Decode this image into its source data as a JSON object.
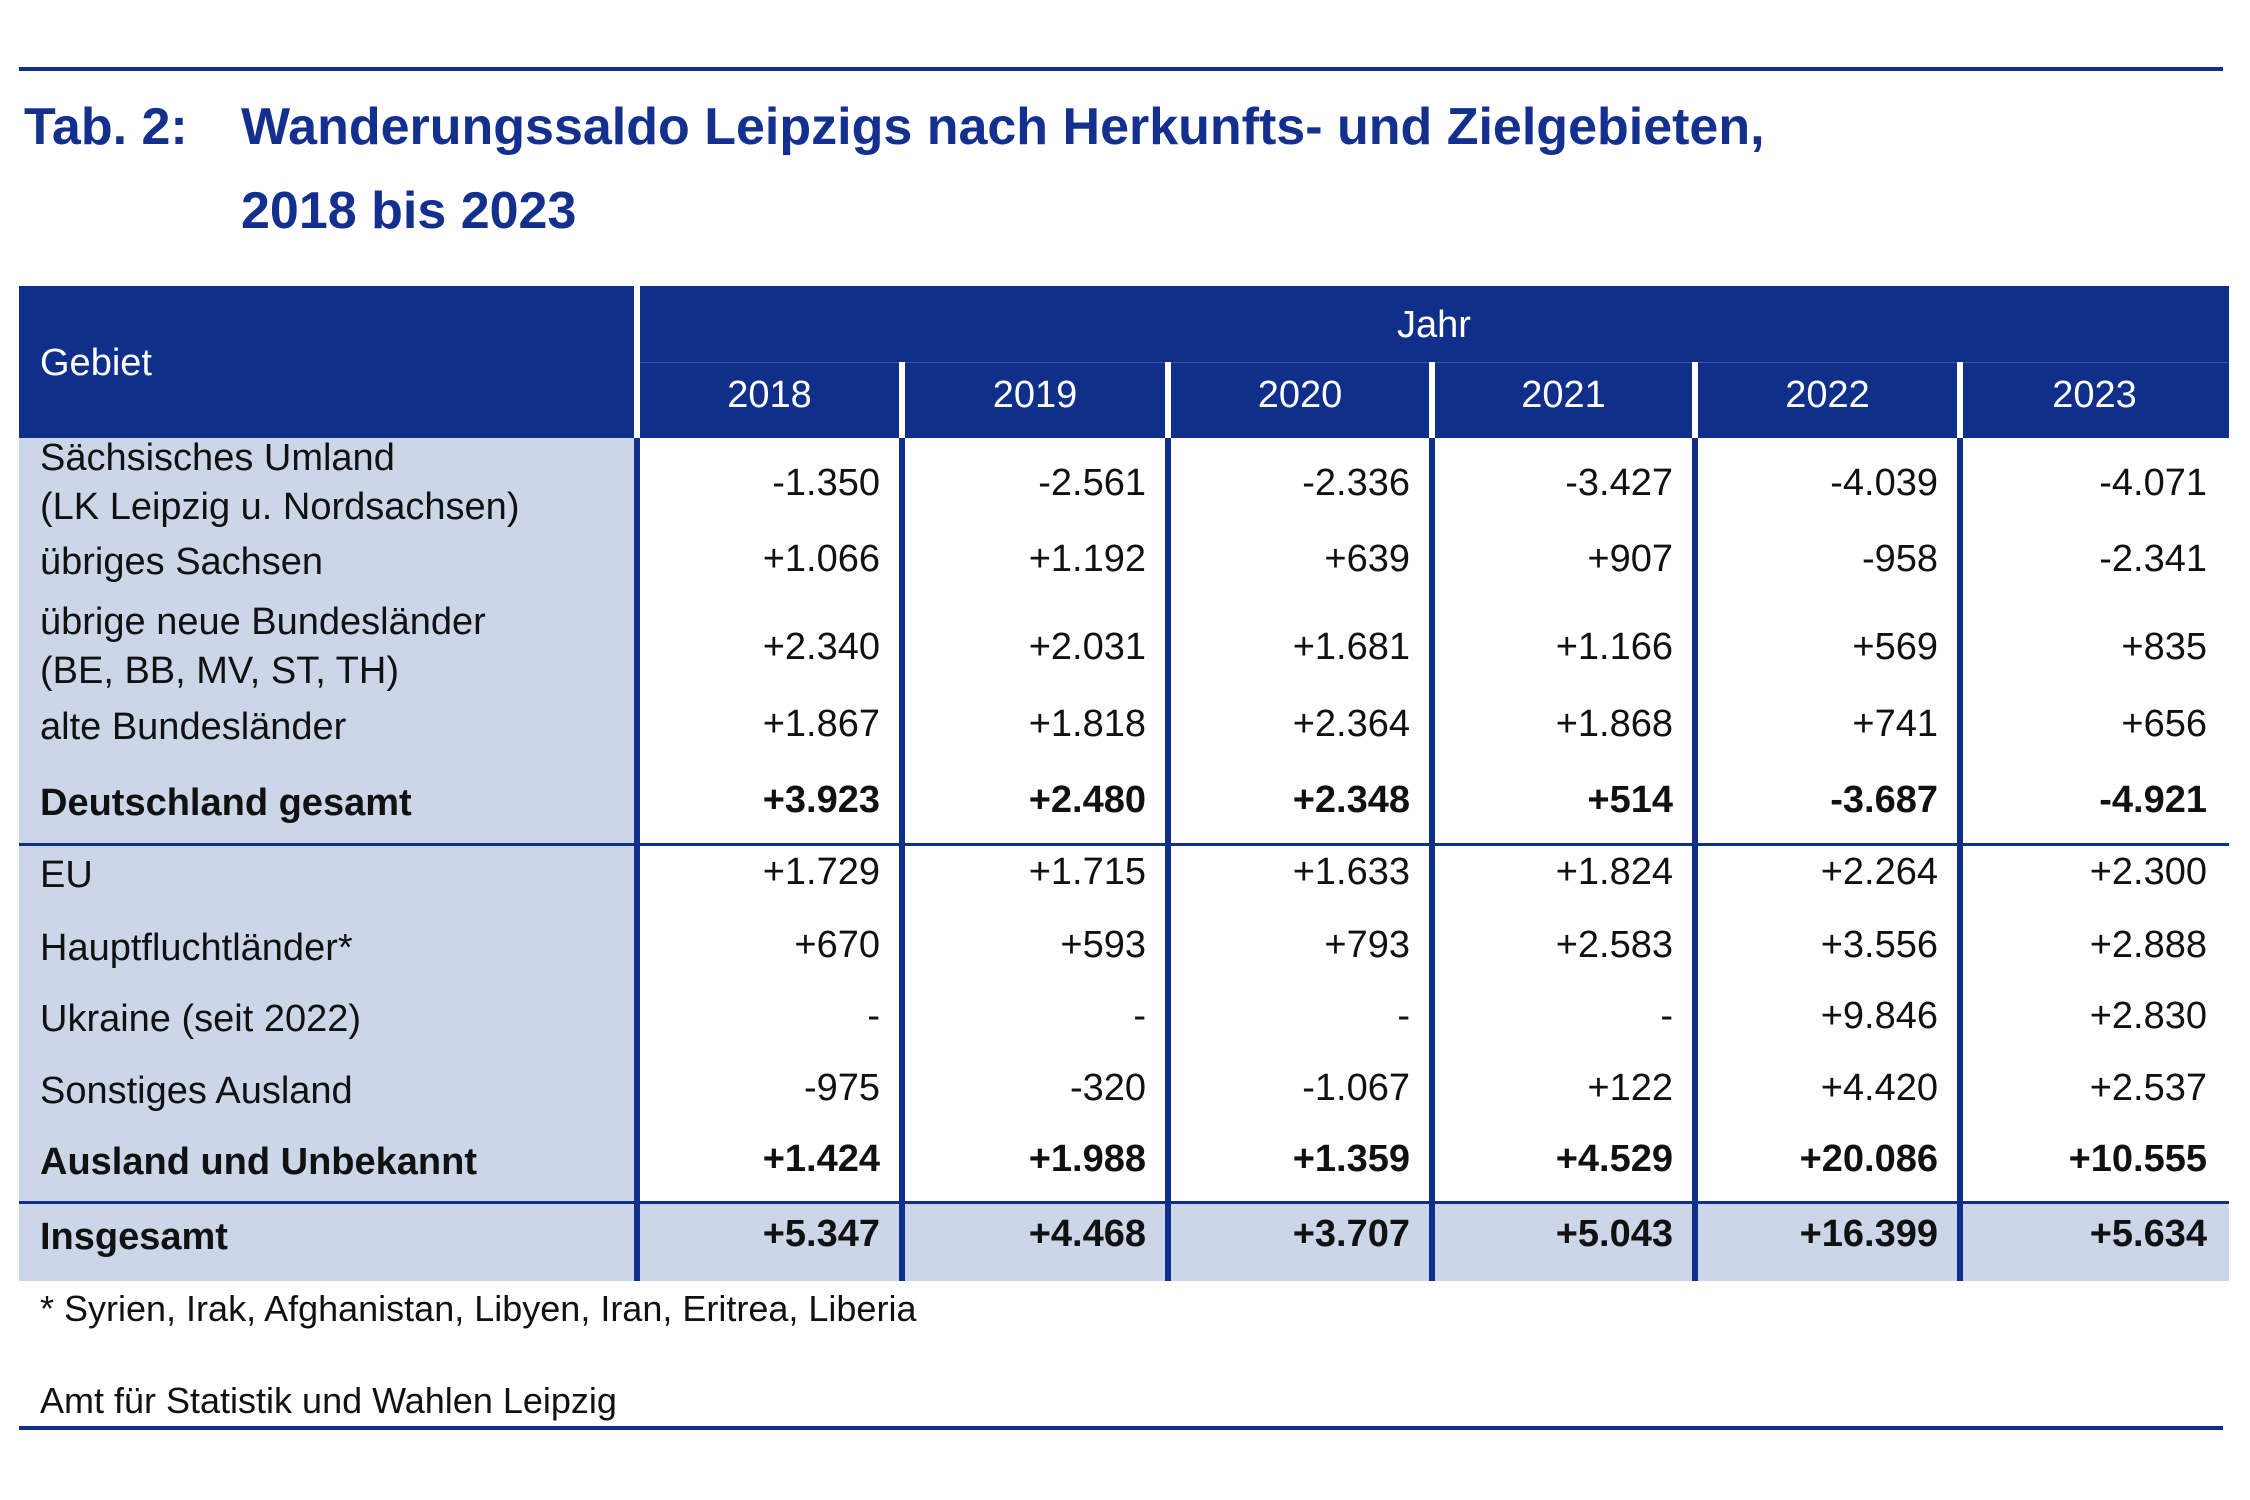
{
  "title": {
    "tab_no": "Tab. 2:",
    "line1": "Wanderungssaldo Leipzigs nach Herkunfts- und Zielgebieten,",
    "line2": "2018 bis 2023"
  },
  "table": {
    "header_gebiet": "Gebiet",
    "header_jahr": "Jahr",
    "years": [
      "2018",
      "2019",
      "2020",
      "2021",
      "2022",
      "2023"
    ],
    "rows": [
      {
        "label": "Sächsisches Umland\n(LK Leipzig u. Nordsachsen)",
        "values": [
          "-1.350",
          "-2.561",
          "-2.336",
          "-3.427",
          "-4.039",
          "-4.071"
        ]
      },
      {
        "label": "übriges Sachsen",
        "values": [
          "+1.066",
          "+1.192",
          "+639",
          "+907",
          "-958",
          "-2.341"
        ]
      },
      {
        "label": "übrige neue Bundesländer\n(BE, BB, MV, ST, TH)",
        "values": [
          "+2.340",
          "+2.031",
          "+1.681",
          "+1.166",
          "+569",
          "+835"
        ]
      },
      {
        "label": "alte Bundesländer",
        "values": [
          "+1.867",
          "+1.818",
          "+2.364",
          "+1.868",
          "+741",
          "+656"
        ]
      },
      {
        "label": "Deutschland gesamt",
        "values": [
          "+3.923",
          "+2.480",
          "+2.348",
          "+514",
          "-3.687",
          "-4.921"
        ]
      },
      {
        "label": "EU",
        "values": [
          "+1.729",
          "+1.715",
          "+1.633",
          "+1.824",
          "+2.264",
          "+2.300"
        ]
      },
      {
        "label": "Hauptfluchtländer*",
        "values": [
          "+670",
          "+593",
          "+793",
          "+2.583",
          "+3.556",
          "+2.888"
        ]
      },
      {
        "label": "Ukraine (seit 2022)",
        "values": [
          "-",
          "-",
          "-",
          "-",
          "+9.846",
          "+2.830"
        ]
      },
      {
        "label": "Sonstiges Ausland",
        "values": [
          "-975",
          "-320",
          "-1.067",
          "+122",
          "+4.420",
          "+2.537"
        ]
      },
      {
        "label": "Ausland und Unbekannt",
        "values": [
          "+1.424",
          "+1.988",
          "+1.359",
          "+4.529",
          "+20.086",
          "+10.555"
        ]
      },
      {
        "label": "Insgesamt",
        "values": [
          "+5.347",
          "+4.468",
          "+3.707",
          "+5.043",
          "+16.399",
          "+5.634"
        ]
      }
    ]
  },
  "footnote": "* Syrien, Irak, Afghanistan, Libyen, Iran, Eritrea, Liberia",
  "source": "Amt für Statistik und Wahlen Leipzig",
  "colors": {
    "accent": "#0f2f8a",
    "label_bg": "#cbd6e8"
  }
}
